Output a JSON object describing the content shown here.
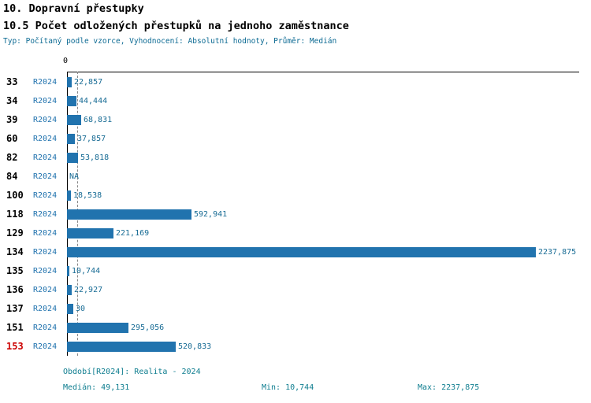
{
  "header": {
    "title1": "10. Dopravní přestupky",
    "title2": "10.5 Počet odložených přestupků na jednoho zaměstnance",
    "subtitle": "Typ: Počítaný podle vzorce, Vyhodnocení: Absolutní hodnoty, Průměr: Medián"
  },
  "chart_data": {
    "type": "bar",
    "orientation": "horizontal",
    "title": "10.5 Počet odložených přestupků na jednoho zaměstnance",
    "axis_zero_label": "0",
    "series_label": "R2024",
    "categories": [
      "33",
      "34",
      "39",
      "60",
      "82",
      "84",
      "100",
      "118",
      "129",
      "134",
      "135",
      "136",
      "137",
      "151",
      "153"
    ],
    "values": [
      22.857,
      44.444,
      68.831,
      37.857,
      53.818,
      null,
      18.538,
      592.941,
      221.169,
      2237.875,
      10.744,
      22.927,
      30,
      295.056,
      520.833
    ],
    "value_labels": [
      "22,857",
      "44,444",
      "68,831",
      "37,857",
      "53,818",
      "NA",
      "18,538",
      "592,941",
      "221,169",
      "2237,875",
      "10,744",
      "22,927",
      "30",
      "295,056",
      "520,833"
    ],
    "xlim": [
      0,
      2237.875
    ],
    "median": 49.131,
    "median_line": "dashed",
    "grid": false,
    "legend": false,
    "highlight_last_category": true
  },
  "colors": {
    "bar": "#2173ae",
    "series_label": "#2173ae",
    "value_label": "#176b94",
    "subtitle": "#0c6a93",
    "footer": "#0e7d8f",
    "category": "#000000",
    "category_highlight": "#cc0000",
    "axis": "#000000",
    "median_line": "#888888"
  },
  "footer": {
    "period": "Období[R2024]: Realita - 2024",
    "median": "Medián: 49,131",
    "min": "Min: 10,744",
    "max": "Max: 2237,875"
  }
}
